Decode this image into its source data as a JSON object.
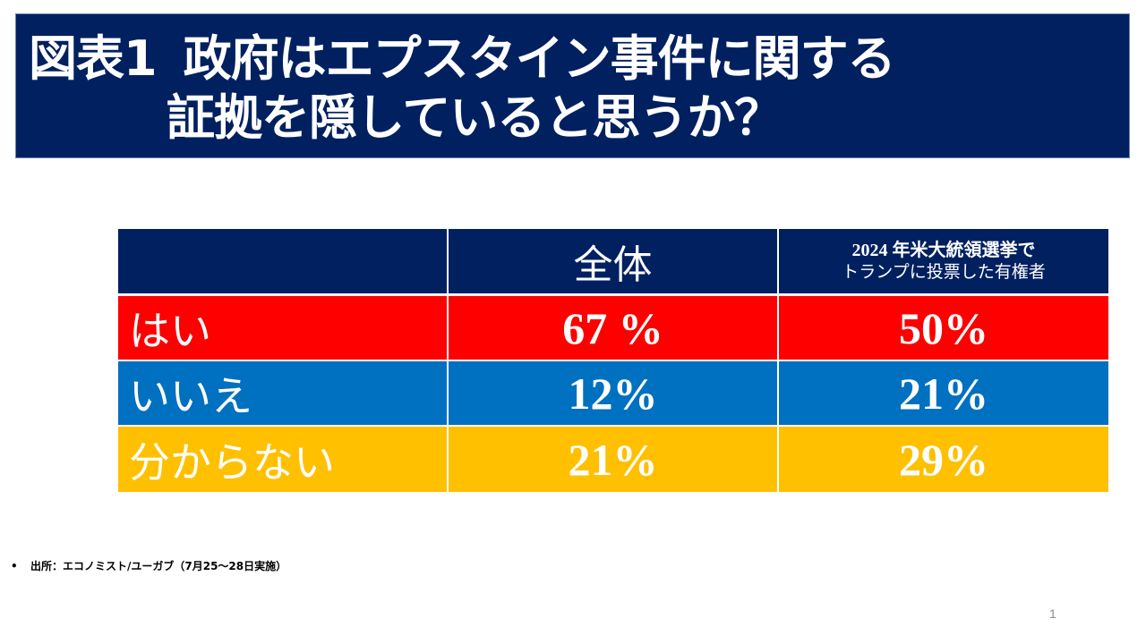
{
  "title": {
    "prefix": "図表1",
    "line1": "政府はエプスタイン事件に関する",
    "line2": "証拠を隠していると思うか？"
  },
  "table": {
    "headers": {
      "label_col": "",
      "overall": "全体",
      "trump_line1": "2024 年米大統領選挙で",
      "trump_line2": "トランプに投票した有権者"
    },
    "rows": [
      {
        "label": "はい",
        "overall": "67 %",
        "trump": "50%",
        "color": "#ff0000"
      },
      {
        "label": "いいえ",
        "overall": "12%",
        "trump": "21%",
        "color": "#0070c0"
      },
      {
        "label": "分からない",
        "overall": "21%",
        "trump": "29%",
        "color": "#ffc000"
      }
    ],
    "header_color": "#002060"
  },
  "footer": {
    "bullet": "•",
    "source": "出所：エコノミスト/ユーガブ（7月25～28日実施）",
    "page_number": "1"
  }
}
